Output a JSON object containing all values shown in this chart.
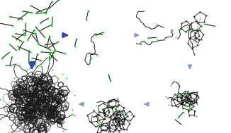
{
  "background_color": "#ffffff",
  "arrow_dark": "#3344bb",
  "arrow_light": "#8899cc",
  "cc": "#1a1a1a",
  "hh": "#00dd00",
  "fig_w": 3.26,
  "fig_h": 1.89,
  "dpi": 100
}
